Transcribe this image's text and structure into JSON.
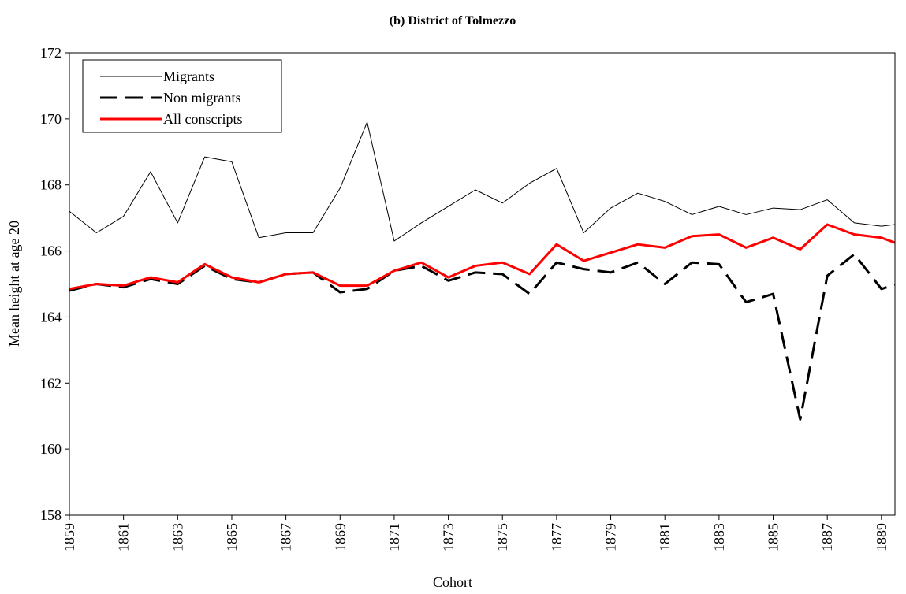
{
  "chart_data": {
    "type": "line",
    "title": "(b) District of Tolmezzo",
    "x_label": "Cohort",
    "y_label": "Mean height at age 20",
    "x": [
      1859,
      1860,
      1861,
      1862,
      1863,
      1864,
      1865,
      1866,
      1867,
      1868,
      1869,
      1870,
      1871,
      1872,
      1873,
      1874,
      1875,
      1876,
      1877,
      1878,
      1879,
      1880,
      1881,
      1882,
      1883,
      1884,
      1885,
      1886,
      1887,
      1888,
      1889,
      1890
    ],
    "series": [
      {
        "name": "Migrants",
        "color": "#000000",
        "dash": "solid",
        "width": 1,
        "values": [
          167.2,
          166.55,
          167.05,
          168.4,
          166.85,
          168.85,
          168.7,
          166.4,
          166.55,
          166.55,
          167.9,
          169.9,
          166.3,
          166.85,
          167.35,
          167.85,
          167.45,
          168.05,
          168.5,
          166.55,
          167.3,
          167.75,
          167.5,
          167.1,
          167.35,
          167.1,
          167.3,
          167.25,
          167.55,
          166.85,
          166.75,
          166.85
        ]
      },
      {
        "name": "Non migrants",
        "color": "#000000",
        "dash": "dashed",
        "width": 3,
        "values": [
          164.8,
          165.0,
          164.9,
          165.15,
          165.0,
          165.55,
          165.15,
          165.05,
          165.3,
          165.35,
          164.75,
          164.85,
          165.4,
          165.55,
          165.1,
          165.35,
          165.3,
          164.7,
          165.65,
          165.45,
          165.35,
          165.65,
          165.0,
          165.65,
          165.6,
          164.45,
          164.7,
          160.9,
          165.25,
          165.9,
          164.85,
          165.1
        ]
      },
      {
        "name": "All conscripts",
        "color": "#ff0000",
        "dash": "solid",
        "width": 3,
        "values": [
          164.85,
          165.0,
          164.95,
          165.2,
          165.05,
          165.6,
          165.2,
          165.05,
          165.3,
          165.35,
          164.95,
          164.95,
          165.4,
          165.65,
          165.2,
          165.55,
          165.65,
          165.3,
          166.2,
          165.7,
          165.95,
          166.2,
          166.1,
          166.45,
          166.5,
          166.1,
          166.4,
          166.05,
          166.8,
          166.5,
          166.4,
          166.1
        ]
      }
    ],
    "xlim": [
      1859,
      1889.5
    ],
    "xticks": [
      1859,
      1861,
      1863,
      1865,
      1867,
      1869,
      1871,
      1873,
      1875,
      1877,
      1879,
      1881,
      1883,
      1885,
      1887,
      1889
    ],
    "ylim": [
      158,
      172
    ],
    "yticks": [
      158,
      160,
      162,
      164,
      166,
      168,
      170,
      172
    ],
    "legend": "upper-left"
  }
}
